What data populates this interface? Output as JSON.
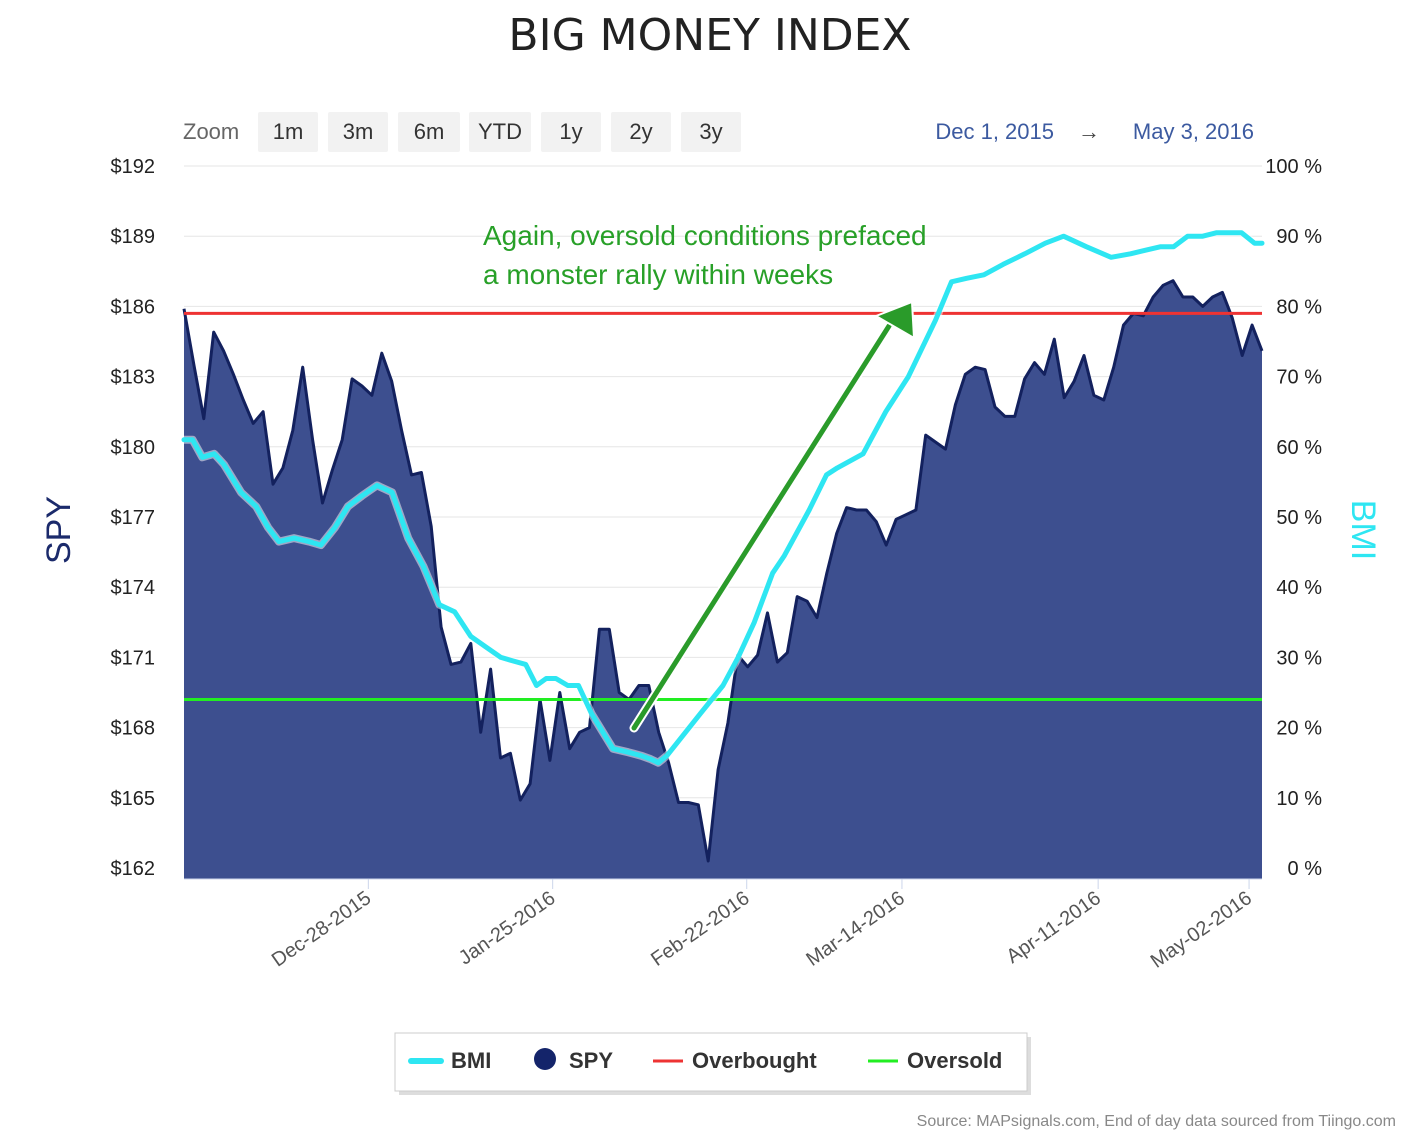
{
  "chart_data": {
    "type": "area",
    "title": "BIG MONEY INDEX",
    "zoom": {
      "label": "Zoom",
      "buttons": [
        "1m",
        "3m",
        "6m",
        "YTD",
        "1y",
        "2y",
        "3y"
      ]
    },
    "range": {
      "from": "Dec 1, 2015",
      "arrow": "→",
      "to": "May 3, 2016"
    },
    "y_left": {
      "title": "SPY",
      "min": 162,
      "max": 192,
      "ticks": [
        162,
        165,
        168,
        171,
        174,
        177,
        180,
        183,
        186,
        189,
        192
      ],
      "tick_labels": [
        "$162",
        "$165",
        "$168",
        "$171",
        "$174",
        "$177",
        "$180",
        "$183",
        "$186",
        "$189",
        "$192"
      ]
    },
    "y_right": {
      "title": "BMI",
      "min": 0,
      "max": 100,
      "ticks": [
        0,
        10,
        20,
        30,
        40,
        50,
        60,
        70,
        80,
        90,
        100
      ],
      "tick_labels": [
        "0 %",
        "10 %",
        "20 %",
        "30 %",
        "40 %",
        "50 %",
        "60 %",
        "70 %",
        "80 %",
        "90 %",
        "100 %"
      ]
    },
    "x_ticks": [
      "Dec-28-2015",
      "Jan-25-2016",
      "Feb-22-2016",
      "Mar-14-2016",
      "Apr-11-2016",
      "May-02-2016"
    ],
    "x_tick_positions": [
      0.171,
      0.342,
      0.522,
      0.666,
      0.848,
      0.988
    ],
    "series": [
      {
        "name": "SPY",
        "color": "#2b3a80",
        "fill": "#3d4f8f",
        "values": [
          185.9,
          183.5,
          181.2,
          184.9,
          184.1,
          183.1,
          182.0,
          181.0,
          181.5,
          178.4,
          179.1,
          180.7,
          183.4,
          180.3,
          177.6,
          179.0,
          180.3,
          182.9,
          182.6,
          182.2,
          184.0,
          182.8,
          180.7,
          178.8,
          178.9,
          176.6,
          172.3,
          170.7,
          170.8,
          171.6,
          167.8,
          170.5,
          166.7,
          166.9,
          164.9,
          165.6,
          169.2,
          166.6,
          169.5,
          167.1,
          167.8,
          168.0,
          172.2,
          172.2,
          169.5,
          169.2,
          169.8,
          169.8,
          167.8,
          166.5,
          164.8,
          164.8,
          164.7,
          162.3,
          166.2,
          168.2,
          171.1,
          170.6,
          171.1,
          172.9,
          170.8,
          171.2,
          173.6,
          173.4,
          172.7,
          174.6,
          176.3,
          177.4,
          177.3,
          177.3,
          176.8,
          175.8,
          176.9,
          177.1,
          177.3,
          180.5,
          180.2,
          179.9,
          181.8,
          183.1,
          183.4,
          183.3,
          181.7,
          181.3,
          181.3,
          182.9,
          183.6,
          183.1,
          184.6,
          182.1,
          182.8,
          183.9,
          182.2,
          182.0,
          183.4,
          185.2,
          185.7,
          185.6,
          186.4,
          186.9,
          187.1,
          186.4,
          186.4,
          186.0,
          186.4,
          186.6,
          185.5,
          183.9,
          185.2,
          184.1
        ],
        "point_positions": "evenly-spaced"
      },
      {
        "name": "BMI",
        "color": "#2ee6f2",
        "values": [
          61,
          61,
          58.5,
          59,
          57.5,
          53.5,
          51.5,
          48.5,
          46.5,
          47,
          46.5,
          46,
          48.5,
          51.5,
          53,
          54.5,
          53.5,
          47,
          43,
          37.5,
          36.5,
          33,
          31.5,
          30,
          29.5,
          29,
          26,
          27,
          27,
          26,
          26,
          22,
          17,
          16.5,
          16,
          15.5,
          15,
          16,
          22,
          26,
          30,
          35,
          42,
          44.5,
          51,
          56,
          57,
          59,
          65,
          70,
          78,
          83.5,
          84,
          84.5,
          86,
          87.5,
          89,
          90,
          88.5,
          87,
          87.5,
          88,
          88.5,
          88.5,
          90,
          90,
          90.5,
          90.5,
          90.5,
          89,
          89
        ],
        "point_positions": [
          0.0,
          0.008,
          0.017,
          0.028,
          0.037,
          0.053,
          0.067,
          0.078,
          0.088,
          0.102,
          0.116,
          0.127,
          0.14,
          0.152,
          0.165,
          0.179,
          0.193,
          0.208,
          0.222,
          0.237,
          0.251,
          0.266,
          0.28,
          0.294,
          0.305,
          0.317,
          0.327,
          0.336,
          0.345,
          0.356,
          0.366,
          0.378,
          0.398,
          0.412,
          0.424,
          0.433,
          0.44,
          0.448,
          0.479,
          0.5,
          0.514,
          0.529,
          0.546,
          0.557,
          0.58,
          0.596,
          0.606,
          0.63,
          0.651,
          0.672,
          0.697,
          0.712,
          0.726,
          0.742,
          0.76,
          0.78,
          0.799,
          0.816,
          0.837,
          0.86,
          0.878,
          0.892,
          0.906,
          0.918,
          0.931,
          0.945,
          0.958,
          0.969,
          0.981,
          0.993,
          1.0
        ]
      }
    ],
    "reference_lines": [
      {
        "name": "Overbought",
        "value": 79,
        "color": "#ee3333"
      },
      {
        "name": "Oversold",
        "value": 24,
        "color": "#22ee22"
      }
    ],
    "annotation": {
      "lines": [
        "Again, oversold conditions prefaced",
        "a monster rally within weeks"
      ],
      "color": "#28a028"
    },
    "legend": {
      "placement": "bottom",
      "items": [
        {
          "name": "BMI",
          "symbol": "line",
          "color": "#2ee6f2"
        },
        {
          "name": "SPY",
          "symbol": "dot",
          "color": "#14246a"
        },
        {
          "name": "Overbought",
          "symbol": "line",
          "color": "#ee3333"
        },
        {
          "name": "Oversold",
          "symbol": "line",
          "color": "#22ee22"
        }
      ]
    },
    "source": "Source: MAPsignals.com, End of day data sourced from Tiingo.com",
    "grid": true
  }
}
